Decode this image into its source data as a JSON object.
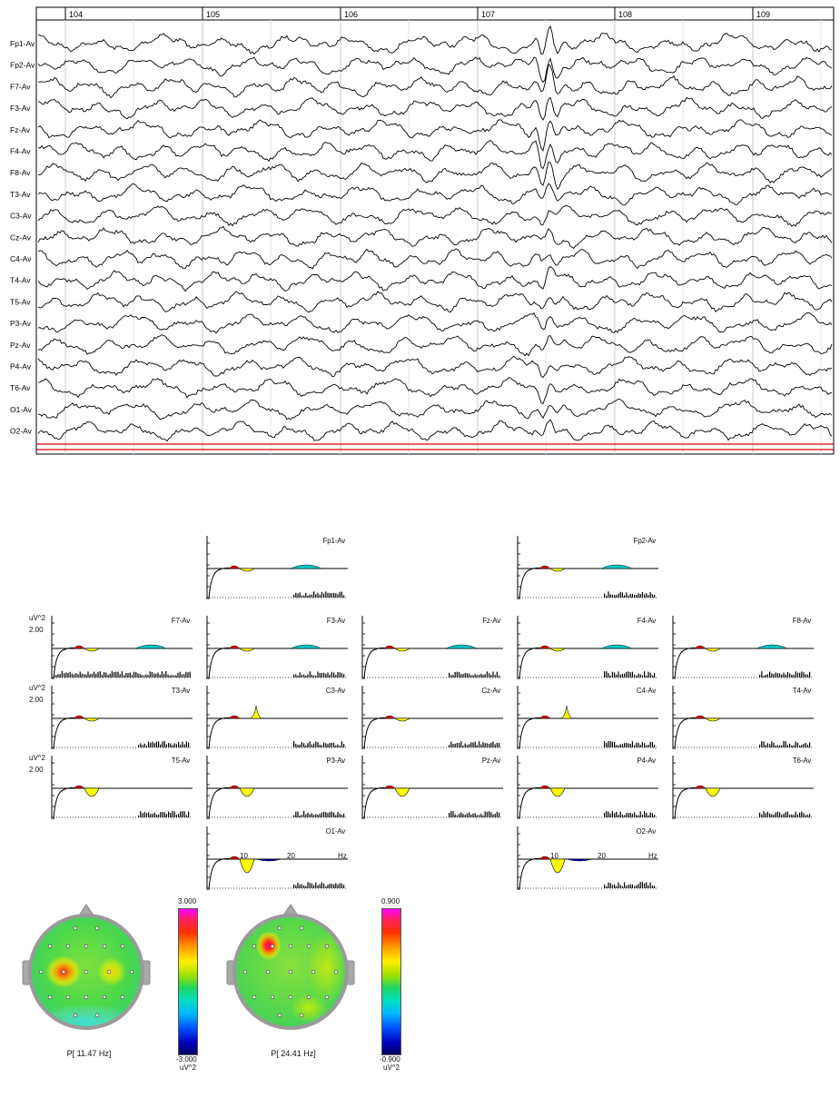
{
  "eeg": {
    "time_marks": [
      "104",
      "105",
      "106",
      "107",
      "108",
      "109"
    ],
    "channels": [
      "Fp1-Av",
      "Fp2-Av",
      "F7-Av",
      "F3-Av",
      "Fz-Av",
      "F4-Av",
      "F8-Av",
      "T3-Av",
      "C3-Av",
      "Cz-Av",
      "C4-Av",
      "T4-Av",
      "T5-Av",
      "P3-Av",
      "Pz-Av",
      "P4-Av",
      "T6-Av",
      "O1-Av",
      "O2-Av"
    ],
    "marker_color": "#e00000"
  },
  "spectra": {
    "y_unit": "uV^2",
    "y_tick": "2.00",
    "x_ticks": [
      "10",
      "20"
    ],
    "x_unit": "Hz",
    "panels": [
      {
        "label": "Fp1-Av"
      },
      {
        "label": "Fp2-Av"
      },
      {
        "label": "F7-Av"
      },
      {
        "label": "F3-Av"
      },
      {
        "label": "Fz-Av"
      },
      {
        "label": "F4-Av"
      },
      {
        "label": "F8-Av"
      },
      {
        "label": "T3-Av"
      },
      {
        "label": "C3-Av"
      },
      {
        "label": "Cz-Av"
      },
      {
        "label": "C4-Av"
      },
      {
        "label": "T4-Av"
      },
      {
        "label": "T5-Av"
      },
      {
        "label": "P3-Av"
      },
      {
        "label": "Pz-Av"
      },
      {
        "label": "P4-Av"
      },
      {
        "label": "T6-Av"
      },
      {
        "label": "O1-Av"
      },
      {
        "label": "O2-Av"
      }
    ],
    "fill_colors": {
      "delta": "#e00000",
      "alpha": "#ffff00",
      "beta": "#00c8c8",
      "theta": "#0000cc"
    }
  },
  "maps": [
    {
      "caption": "P[ 11.47 Hz]",
      "scale_max": "3.000",
      "scale_min": "-3.000",
      "unit": "uV^2"
    },
    {
      "caption": "P[ 24.41 Hz]",
      "scale_max": "0.900",
      "scale_min": "-0.900",
      "unit": "uV^2"
    }
  ]
}
